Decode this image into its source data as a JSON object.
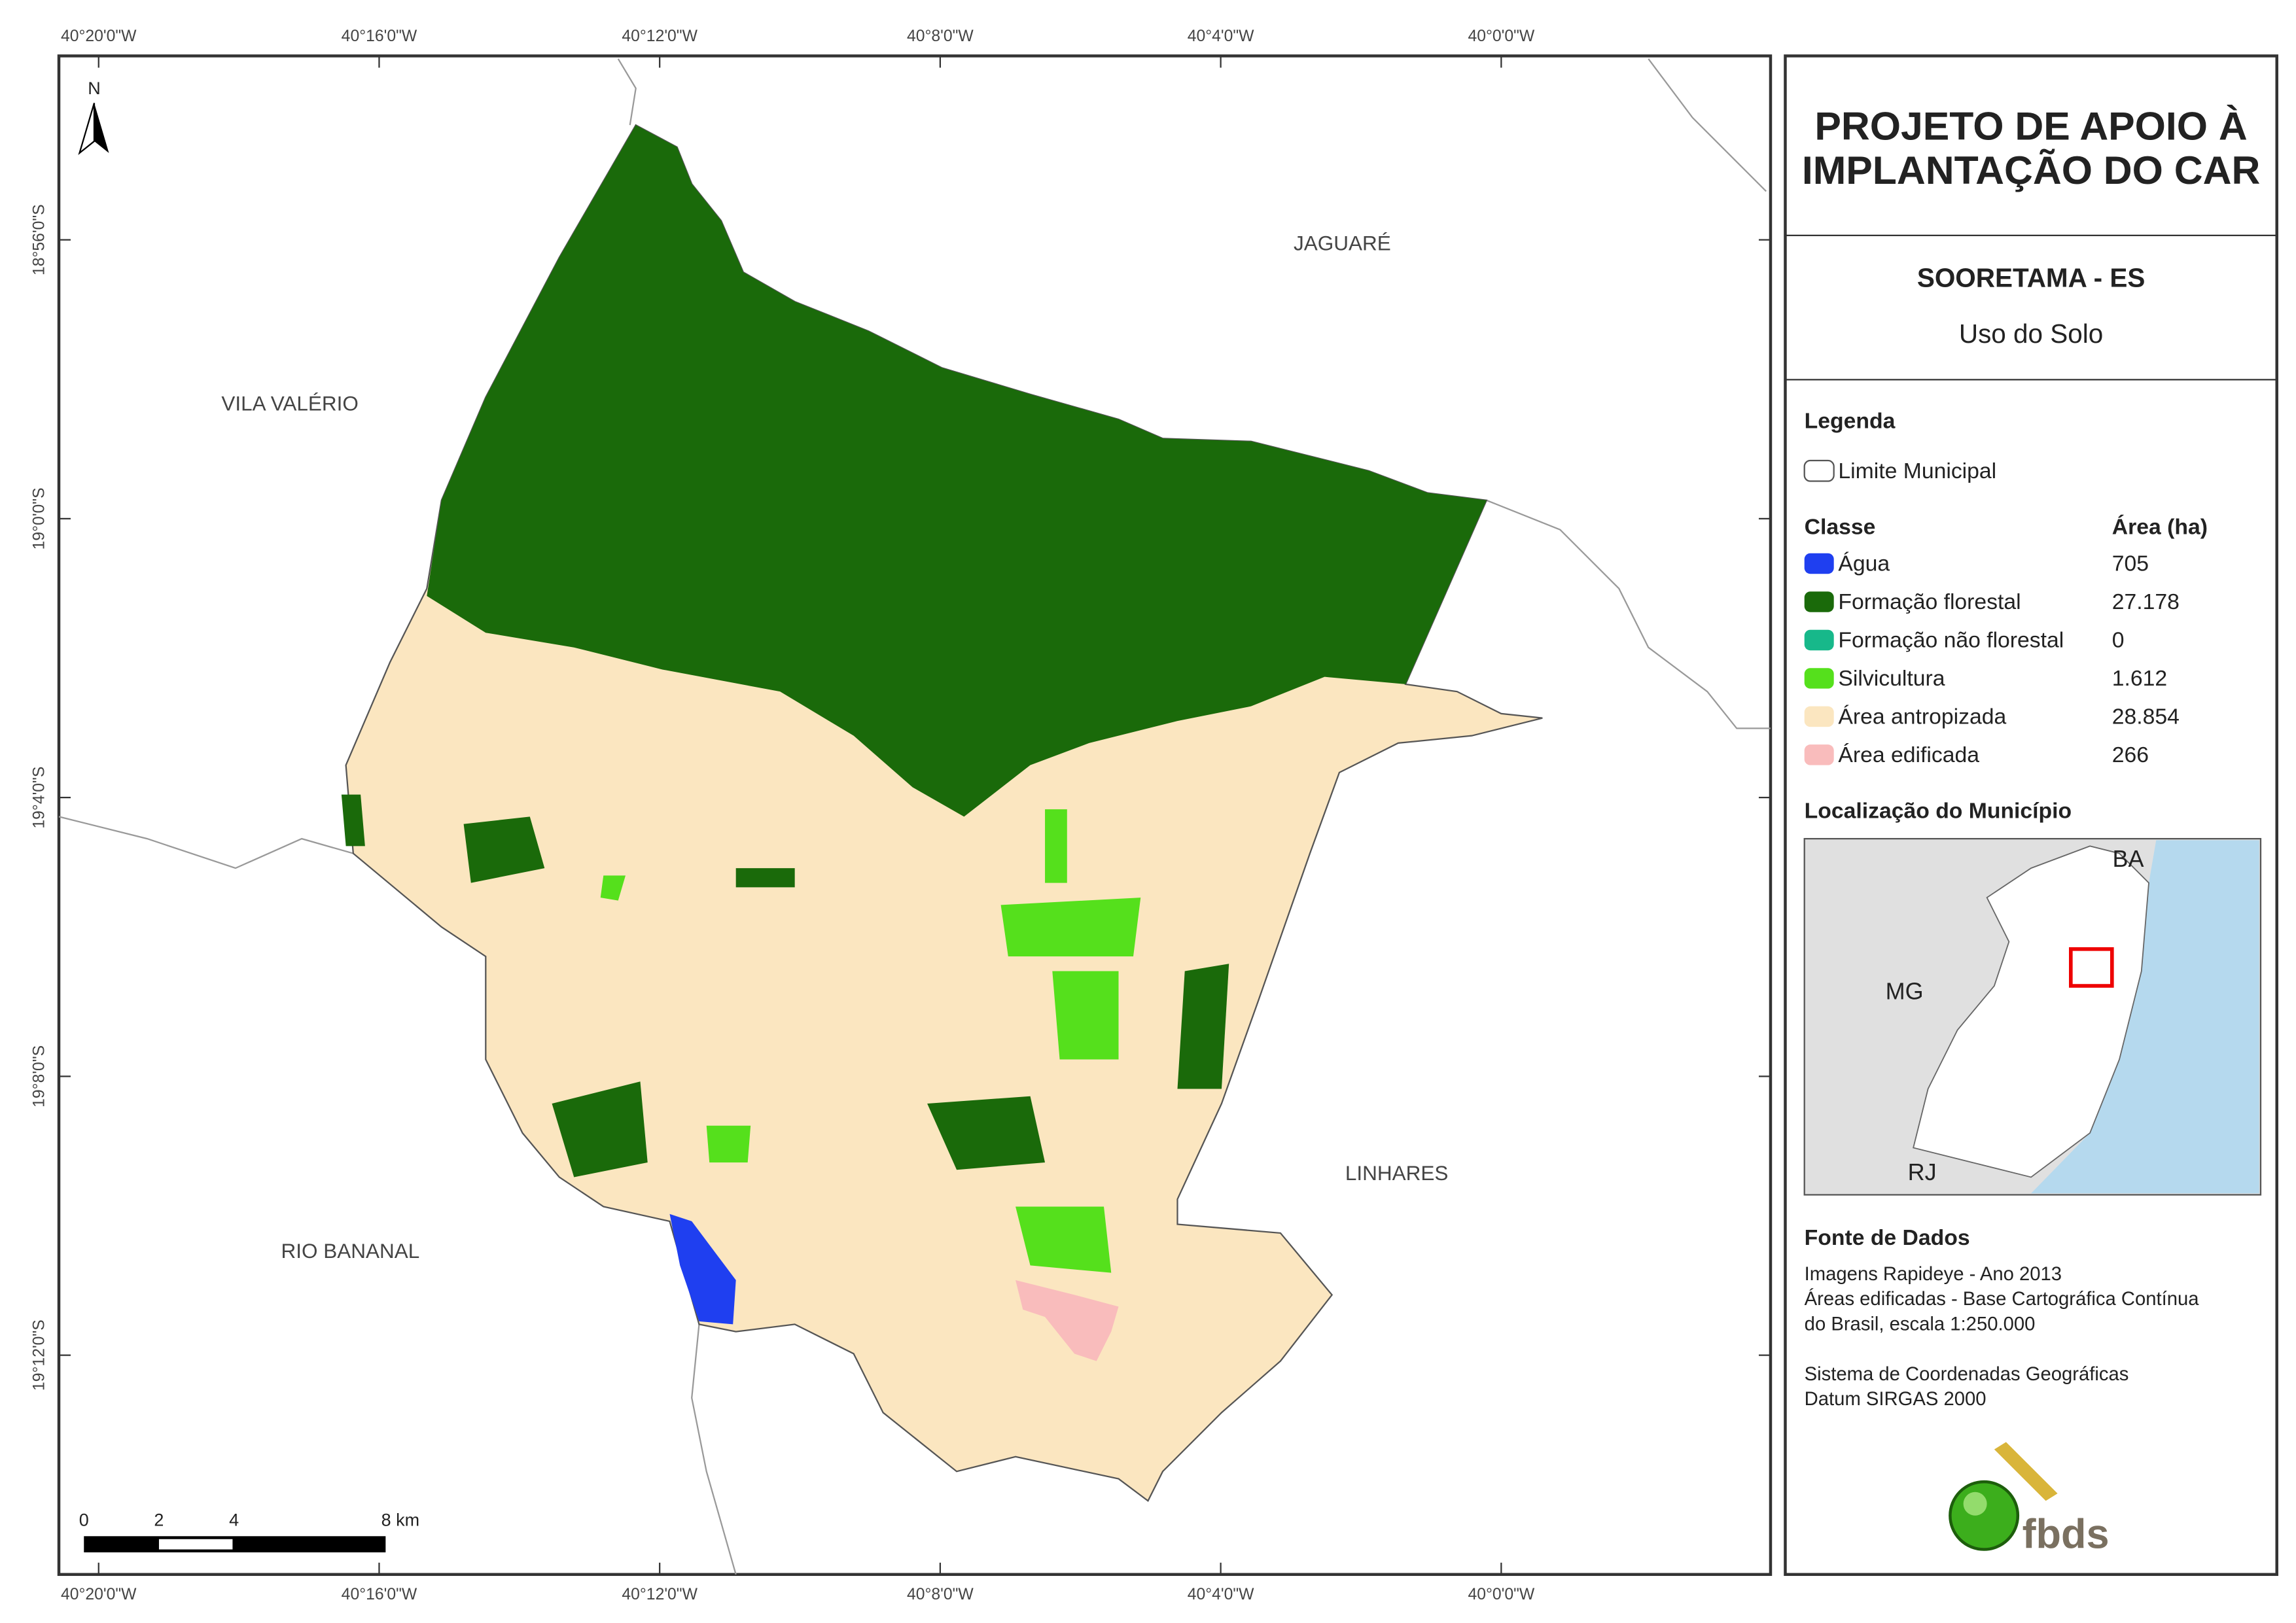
{
  "map": {
    "north": "N",
    "longitudes": [
      "40°20'0\"W",
      "40°16'0\"W",
      "40°12'0\"W",
      "40°8'0\"W",
      "40°4'0\"W",
      "40°0'0\"W"
    ],
    "latitudes": [
      "18°56'0\"S",
      "19°0'0\"S",
      "19°4'0\"S",
      "19°8'0\"S",
      "19°12'0\"S"
    ],
    "place_labels": [
      "JAGUARÉ",
      "VILA VALÉRIO",
      "LINHARES",
      "RIO BANANAL"
    ],
    "scale_bar": [
      "0",
      "2",
      "4",
      "8 km"
    ]
  },
  "panel": {
    "title_lines": [
      "PROJETO DE APOIO À",
      "IMPLANTAÇÃO DO CAR"
    ],
    "subtitle": "SOORETAMA - ES",
    "theme": "Uso do Solo",
    "legend": {
      "title": "Legenda",
      "boundary": "Limite Municipal",
      "class_header": "Classe",
      "area_header": "Área (ha)",
      "classes": [
        {
          "name": "Água",
          "area": "705",
          "color": "#1f3ff0"
        },
        {
          "name": "Formação florestal",
          "area": "27.178",
          "color": "#1a6a0a"
        },
        {
          "name": "Formação não florestal",
          "area": "0",
          "color": "#17b88a"
        },
        {
          "name": "Silvicultura",
          "area": "1.612",
          "color": "#55e01c"
        },
        {
          "name": "Área antropizada",
          "area": "28.854",
          "color": "#fbe6c0"
        },
        {
          "name": "Área edificada",
          "area": "266",
          "color": "#f9bcbc"
        }
      ]
    },
    "location": {
      "title": "Localização do Município",
      "labels": [
        "BA",
        "MG",
        "RJ"
      ]
    },
    "sources": {
      "title": "Fonte de Dados",
      "lines": [
        "Imagens Rapideye - Ano 2013",
        "Áreas edificadas - Base Cartográfica Contínua",
        "do Brasil, escala 1:250.000",
        "Sistema de Coordenadas Geográficas",
        "Datum SIRGAS 2000"
      ]
    },
    "logo": "fbds"
  }
}
